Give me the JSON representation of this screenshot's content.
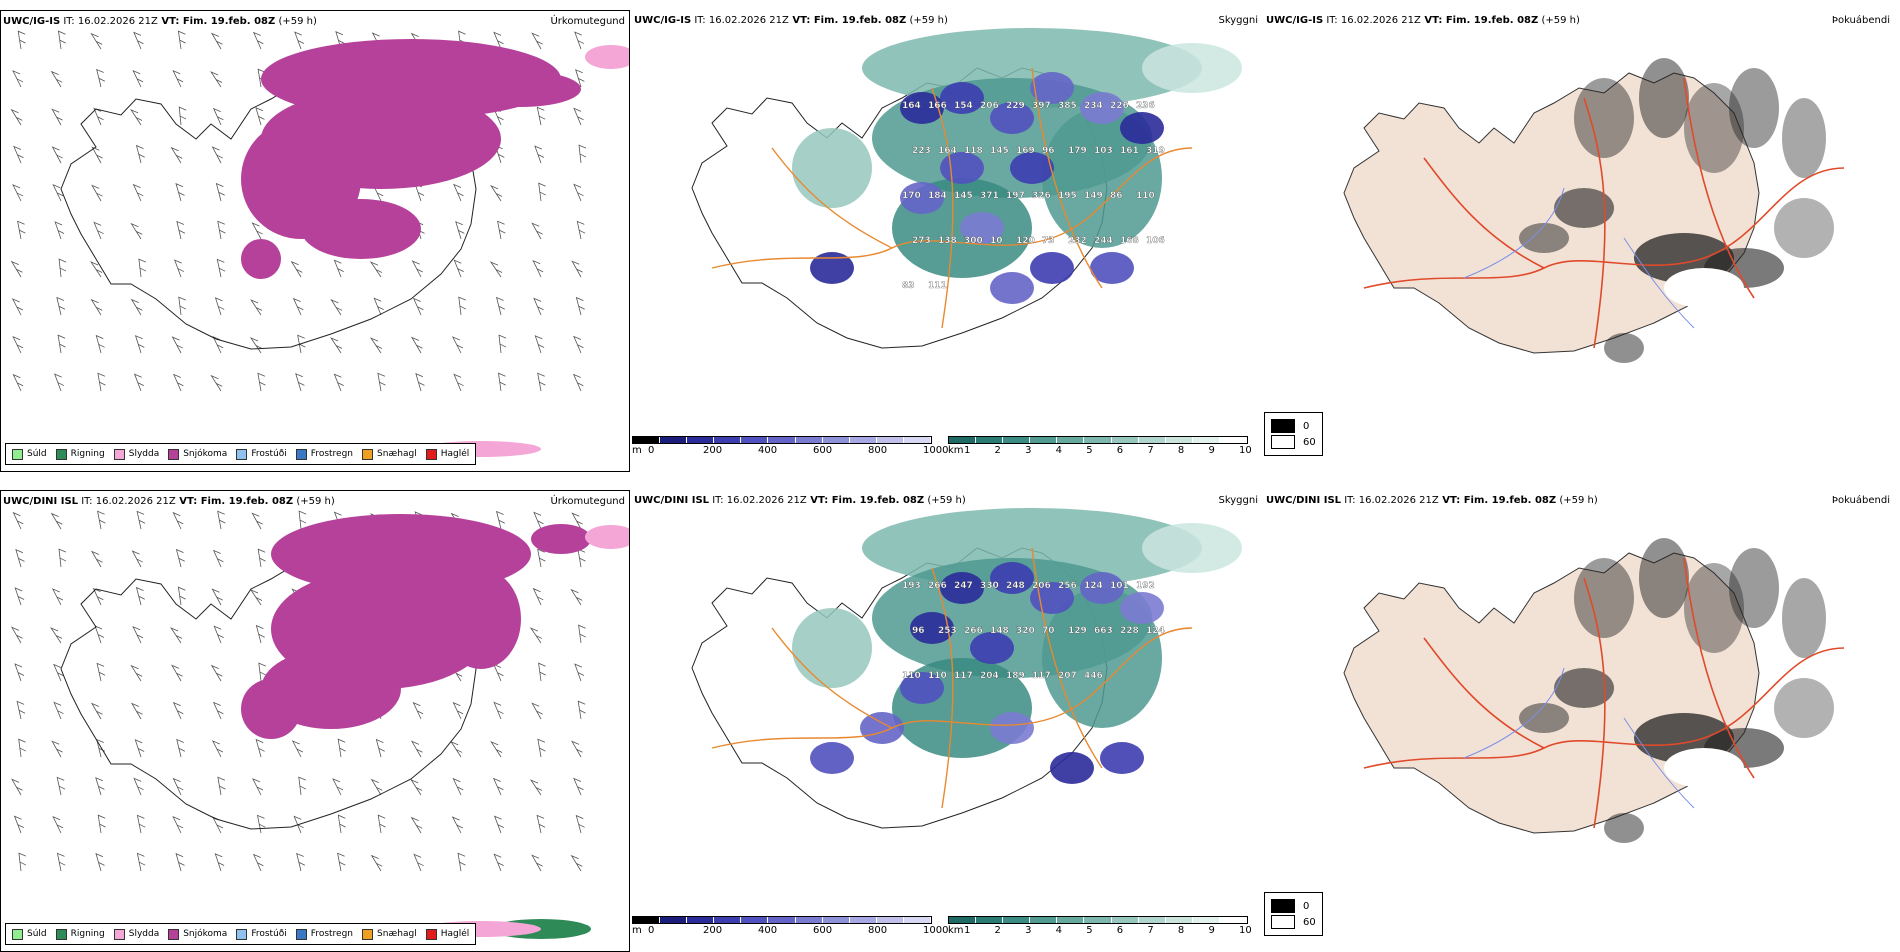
{
  "rows": [
    {
      "model": "UWC/IG-IS",
      "it_label": "IT:",
      "it_value": "16.02.2026 21Z",
      "vt_label": "VT:",
      "vt_value": "Fim. 19.feb. 08Z",
      "lead": "(+59 h)",
      "numbers": [
        "164",
        "166",
        "154",
        "206",
        "229",
        "397",
        "385",
        "234",
        "226",
        "236",
        "223",
        "164",
        "118",
        "145",
        "169",
        "96",
        "179",
        "103",
        "161",
        "319",
        "170",
        "184",
        "145",
        "371",
        "197",
        "326",
        "195",
        "149",
        "86",
        "110",
        "273",
        "138",
        "300",
        "10",
        "120",
        "73",
        "232",
        "244",
        "168",
        "106",
        "83",
        "111"
      ]
    },
    {
      "model": "UWC/DINI ISL",
      "it_label": "IT:",
      "it_value": "16.02.2026 21Z",
      "vt_label": "VT:",
      "vt_value": "Fim. 19.feb. 08Z",
      "lead": "(+59 h)",
      "numbers": [
        "193",
        "266",
        "247",
        "330",
        "248",
        "206",
        "256",
        "124",
        "101",
        "192",
        "96",
        "253",
        "266",
        "148",
        "320",
        "70",
        "129",
        "663",
        "228",
        "124",
        "110",
        "110",
        "117",
        "204",
        "189",
        "117",
        "207",
        "446"
      ]
    }
  ],
  "panel_titles": {
    "precip": "Úrkomutegund",
    "cloud": "Skyggni",
    "fog": "Þokuábendi"
  },
  "precip_legend": [
    {
      "label": "Súld",
      "color": "#90ee90"
    },
    {
      "label": "Rigning",
      "color": "#2e8b57"
    },
    {
      "label": "Slydda",
      "color": "#f4a6d7"
    },
    {
      "label": "Snjókoma",
      "color": "#b5419b"
    },
    {
      "label": "Frostúði",
      "color": "#8ec1ee"
    },
    {
      "label": "Frostregn",
      "color": "#3b78c6"
    },
    {
      "label": "Snæhagl",
      "color": "#f0a020"
    },
    {
      "label": "Haglél",
      "color": "#e21b1b"
    }
  ],
  "scale_m": {
    "unit": "m",
    "ticks": [
      "0",
      "200",
      "400",
      "600",
      "800",
      "1000"
    ],
    "colors": [
      "#000000",
      "#1c1c7a",
      "#2b2b9a",
      "#3d3db0",
      "#5151bf",
      "#6565c8",
      "#7b7bd1",
      "#9191d9",
      "#a8a8e2",
      "#c0c0eb",
      "#d8d8f3"
    ]
  },
  "scale_km": {
    "unit": "km",
    "ticks": [
      "1",
      "2",
      "3",
      "4",
      "5",
      "6",
      "7",
      "8",
      "9",
      "10"
    ],
    "colors": [
      "#1d6b62",
      "#2a7b72",
      "#3a8b82",
      "#4f9a91",
      "#65a99f",
      "#7db8ae",
      "#97c7bd",
      "#b1d6cd",
      "#cbe5de",
      "#e4f2ee",
      "#ffffff"
    ]
  },
  "fog_legend": [
    {
      "label": "0",
      "color": "#000000"
    },
    {
      "label": "60",
      "color": "#ffffff"
    }
  ]
}
